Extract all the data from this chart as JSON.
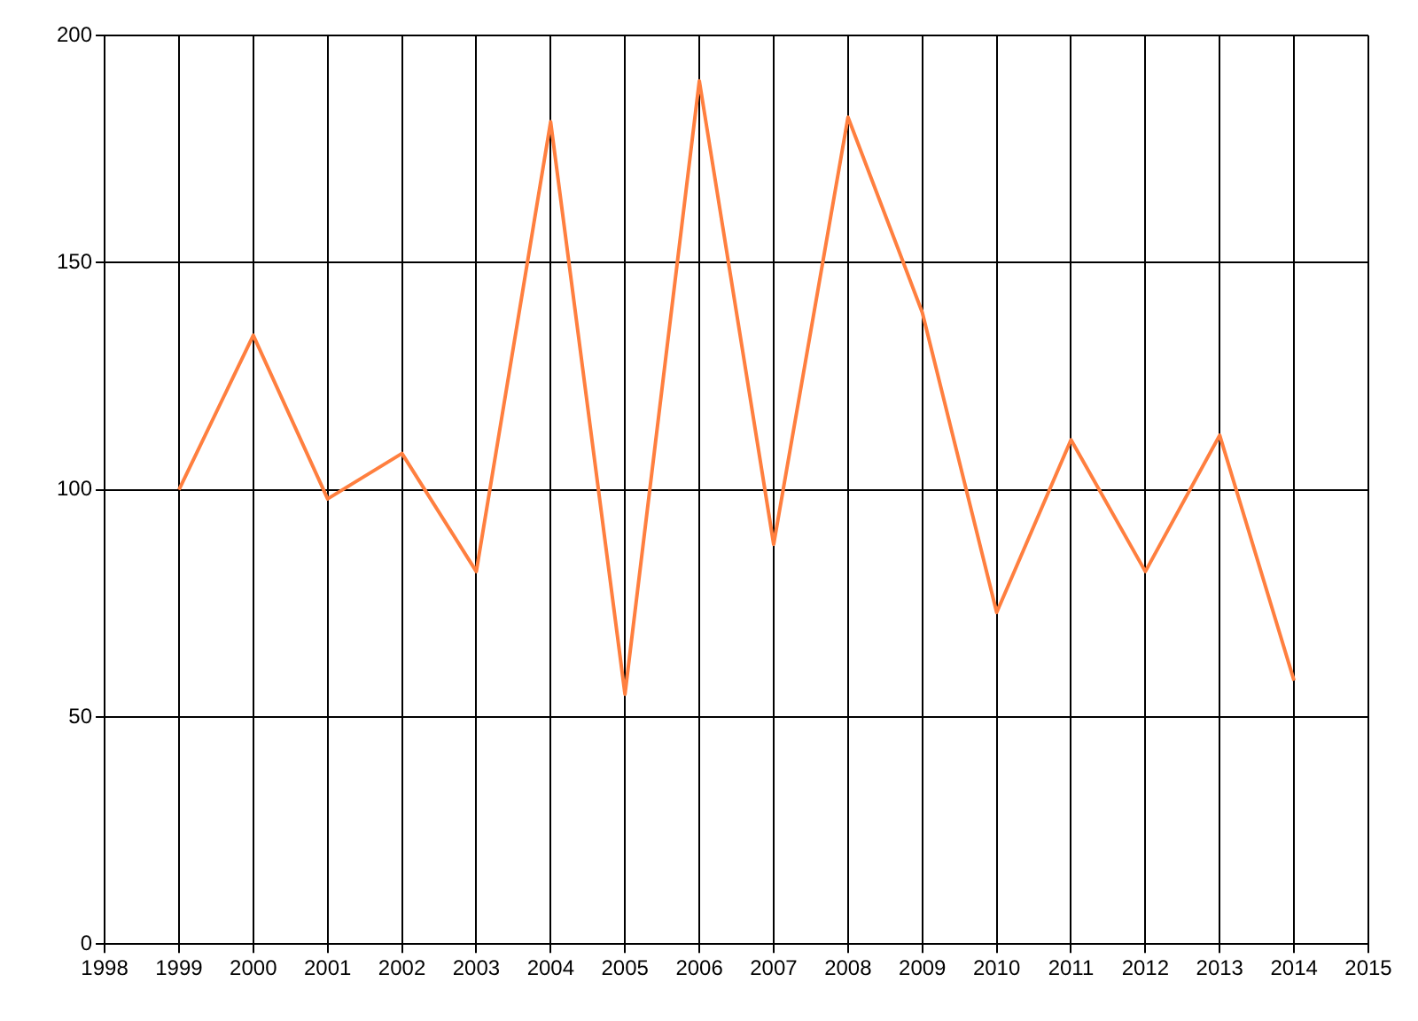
{
  "chart_data": {
    "type": "line",
    "x": [
      1999,
      2000,
      2001,
      2002,
      2003,
      2004,
      2005,
      2006,
      2007,
      2008,
      2009,
      2010,
      2011,
      2012,
      2013,
      2014
    ],
    "series": [
      {
        "color": "#ff7f3f",
        "values": [
          100,
          134,
          98,
          108,
          82,
          181,
          55,
          190,
          88,
          182,
          139,
          73,
          111,
          82,
          112,
          58
        ]
      }
    ],
    "xlim": [
      1998,
      2015
    ],
    "xticks": [
      1998,
      1999,
      2000,
      2001,
      2002,
      2003,
      2004,
      2005,
      2006,
      2007,
      2008,
      2009,
      2010,
      2011,
      2012,
      2013,
      2014,
      2015
    ],
    "ylim": [
      0,
      200
    ],
    "yticks": [
      0,
      50,
      100,
      150,
      200
    ],
    "grid": true,
    "legend": false,
    "marker": "none",
    "line_style": "solid"
  }
}
